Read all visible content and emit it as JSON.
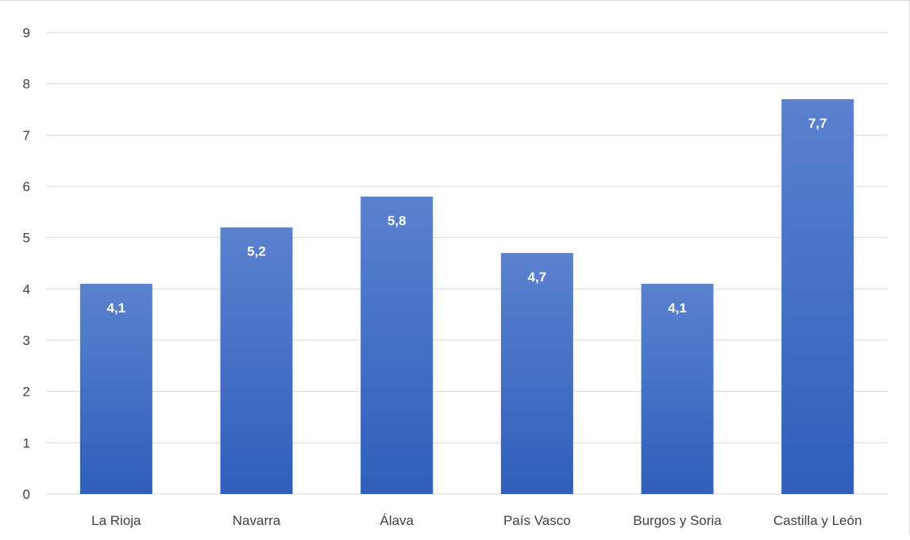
{
  "chart_data": {
    "type": "bar",
    "categories": [
      "La Rioja",
      "Navarra",
      "Álava",
      "País Vasco",
      "Burgos y Soria",
      "Castilla y León"
    ],
    "values": [
      4.1,
      5.2,
      5.8,
      4.7,
      4.1,
      7.7
    ],
    "data_labels": [
      "4,1",
      "5,2",
      "5,8",
      "4,7",
      "4,1",
      "7,7"
    ],
    "ylim": [
      0,
      9
    ],
    "yticks": [
      "0",
      "1",
      "2",
      "3",
      "4",
      "5",
      "6",
      "7",
      "8",
      "9"
    ],
    "grid": true,
    "legend": "none",
    "colors": {
      "bar_top": "#5b82cf",
      "bar_bottom": "#2f5fbb",
      "grid": "#d9d9d9",
      "tick_text": "#404040",
      "data_label": "#ffffff"
    }
  }
}
